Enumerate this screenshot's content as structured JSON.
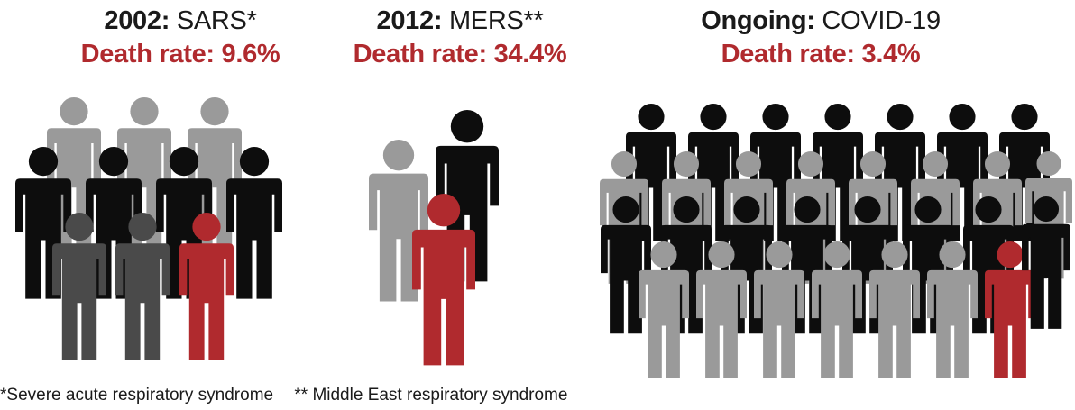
{
  "panels": {
    "sars": {
      "year": "2002:",
      "disease": "SARS*",
      "rate_label": "Death rate: 9.6%",
      "death_rate_percent": 9.6
    },
    "mers": {
      "year": "2012:",
      "disease": "MERS**",
      "rate_label": "Death rate: 34.4%",
      "death_rate_percent": 34.4
    },
    "covid": {
      "year": "Ongoing:",
      "disease": "COVID-19",
      "rate_label": "Death rate: 3.4%",
      "death_rate_percent": 3.4
    }
  },
  "footnotes": {
    "sars": "*Severe acute respiratory syndrome",
    "mers": "** Middle East respiratory syndrome"
  },
  "colors": {
    "black": "#0d0d0d",
    "dark_gray": "#4a4a4a",
    "light_gray": "#9a9a9a",
    "red": "#b02a2e"
  }
}
